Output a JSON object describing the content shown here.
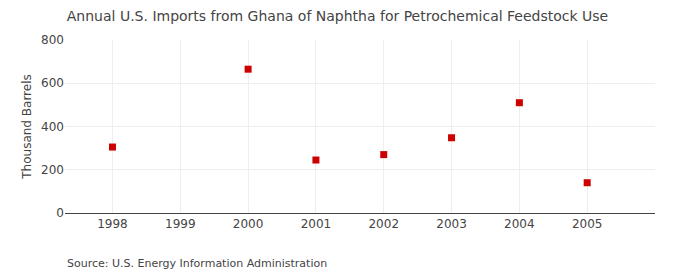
{
  "chart_data": {
    "type": "scatter",
    "title": "Annual U.S. Imports from Ghana of Naphtha for Petrochemical Feedstock Use",
    "ylabel": "Thousand Barrels",
    "annotations": [
      "Source: U.S. Energy Information Administration"
    ],
    "x": [
      1998,
      2000,
      2001,
      2002,
      2003,
      2004,
      2005
    ],
    "values": [
      305,
      665,
      245,
      270,
      348,
      510,
      140
    ],
    "color": "#cc0000",
    "marker": "square",
    "xlim": [
      1997.3,
      2006.0
    ],
    "ylim": [
      0,
      800
    ],
    "xticks": [
      1998,
      1999,
      2000,
      2001,
      2002,
      2003,
      2004,
      2005
    ],
    "yticks": [
      0,
      200,
      400,
      600,
      800
    ],
    "grid": true
  }
}
